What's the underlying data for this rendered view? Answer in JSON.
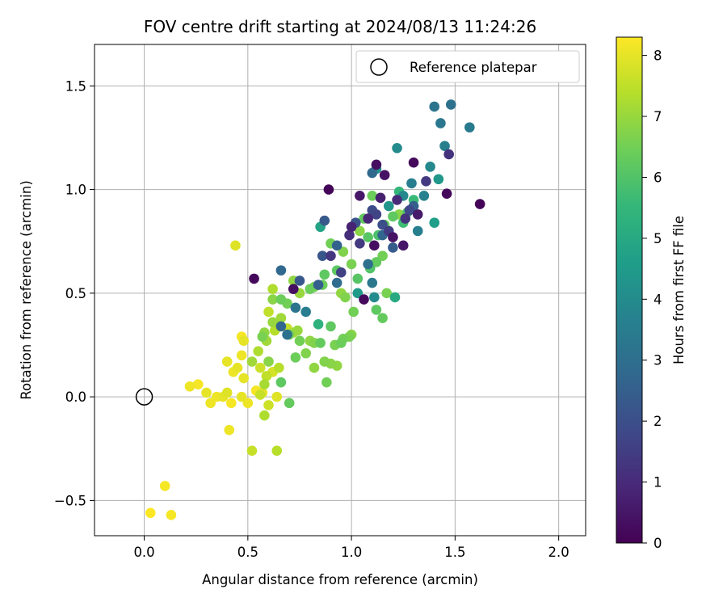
{
  "chart_data": {
    "type": "scatter",
    "title": "FOV centre drift starting at 2024/08/13 11:24:26",
    "xlabel": "Angular distance from reference (arcmin)",
    "ylabel": "Rotation from reference (arcmin)",
    "xlim": [
      -0.24,
      2.13
    ],
    "ylim": [
      -0.67,
      1.7
    ],
    "x_ticks": [
      0.0,
      0.5,
      1.0,
      1.5,
      2.0
    ],
    "x_tick_labels": [
      "0.0",
      "0.5",
      "1.0",
      "1.5",
      "2.0"
    ],
    "y_ticks": [
      -0.5,
      0.0,
      0.5,
      1.0,
      1.5
    ],
    "y_tick_labels": [
      "−0.5",
      "0.0",
      "0.5",
      "1.0",
      "1.5"
    ],
    "grid": true,
    "legend": {
      "placement": "top-right",
      "entries": [
        "Reference platepar"
      ]
    },
    "reference_point": {
      "name": "Reference platepar",
      "x": 0.0,
      "y": 0.0,
      "marker": "open-circle"
    },
    "colorbar": {
      "label": "Hours from first FF file",
      "range": [
        0,
        8.3
      ],
      "ticks": [
        0,
        1,
        2,
        3,
        4,
        5,
        6,
        7,
        8
      ],
      "tick_labels": [
        "0",
        "1",
        "2",
        "3",
        "4",
        "5",
        "6",
        "7",
        "8"
      ],
      "colormap": "viridis"
    },
    "colormap_stops": [
      "#440154",
      "#482878",
      "#3e4a89",
      "#31688e",
      "#26828e",
      "#1f9e89",
      "#35b779",
      "#6ece58",
      "#b5de2b",
      "#fde725"
    ],
    "points": [
      [
        1.62,
        0.93,
        0.1
      ],
      [
        1.46,
        0.98,
        0.2
      ],
      [
        1.12,
        1.12,
        0.3
      ],
      [
        1.3,
        1.13,
        0.2
      ],
      [
        0.89,
        1.0,
        0.1
      ],
      [
        1.16,
        1.07,
        0.4
      ],
      [
        1.04,
        0.97,
        0.5
      ],
      [
        0.53,
        0.57,
        0.2
      ],
      [
        1.11,
        0.73,
        0.3
      ],
      [
        1.2,
        0.77,
        0.4
      ],
      [
        1.25,
        0.73,
        0.5
      ],
      [
        1.32,
        0.88,
        0.6
      ],
      [
        1.06,
        0.47,
        0.2
      ],
      [
        0.72,
        0.52,
        0.3
      ],
      [
        1.14,
        0.96,
        0.7
      ],
      [
        1.0,
        0.82,
        0.8
      ],
      [
        1.08,
        0.86,
        0.9
      ],
      [
        1.22,
        0.95,
        1.0
      ],
      [
        0.99,
        0.78,
        1.1
      ],
      [
        1.26,
        0.86,
        1.2
      ],
      [
        0.9,
        0.68,
        1.3
      ],
      [
        1.04,
        0.74,
        1.4
      ],
      [
        1.18,
        0.8,
        1.5
      ],
      [
        0.95,
        0.6,
        1.6
      ],
      [
        1.12,
        0.88,
        1.7
      ],
      [
        1.28,
        0.9,
        1.8
      ],
      [
        1.47,
        1.17,
        1.2
      ],
      [
        1.36,
        1.04,
        1.4
      ],
      [
        1.1,
        0.9,
        1.9
      ],
      [
        1.15,
        0.83,
        2.0
      ],
      [
        1.02,
        0.84,
        2.1
      ],
      [
        0.86,
        0.68,
        2.2
      ],
      [
        0.87,
        0.85,
        2.3
      ],
      [
        1.2,
        0.72,
        2.4
      ],
      [
        1.3,
        0.92,
        2.5
      ],
      [
        0.93,
        0.73,
        2.6
      ],
      [
        1.15,
        0.78,
        2.7
      ],
      [
        1.1,
        1.08,
        2.8
      ],
      [
        1.4,
        1.4,
        3.2
      ],
      [
        1.48,
        1.41,
        3.1
      ],
      [
        1.43,
        1.32,
        3.3
      ],
      [
        1.57,
        1.3,
        3.4
      ],
      [
        1.45,
        1.21,
        3.6
      ],
      [
        1.38,
        1.11,
        3.9
      ],
      [
        1.22,
        1.2,
        4.0
      ],
      [
        1.12,
        1.1,
        4.2
      ],
      [
        1.42,
        1.05,
        4.4
      ],
      [
        1.29,
        1.03,
        3.5
      ],
      [
        1.35,
        0.97,
        3.7
      ],
      [
        1.25,
        0.97,
        3.9
      ],
      [
        1.32,
        0.8,
        3.6
      ],
      [
        1.4,
        0.84,
        4.6
      ],
      [
        1.18,
        0.92,
        4.3
      ],
      [
        1.08,
        0.64,
        3.0
      ],
      [
        0.93,
        0.55,
        2.9
      ],
      [
        0.84,
        0.54,
        2.5
      ],
      [
        0.66,
        0.61,
        2.8
      ],
      [
        0.73,
        0.43,
        3.2
      ],
      [
        0.78,
        0.41,
        3.5
      ],
      [
        0.75,
        0.56,
        2.3
      ],
      [
        0.66,
        0.34,
        2.7
      ],
      [
        0.69,
        0.3,
        3.1
      ],
      [
        1.1,
        0.55,
        3.3
      ],
      [
        1.11,
        0.48,
        4.0
      ],
      [
        0.85,
        0.82,
        4.8
      ],
      [
        1.03,
        0.5,
        4.5
      ],
      [
        1.21,
        0.48,
        5.0
      ],
      [
        0.84,
        0.35,
        5.3
      ],
      [
        1.23,
        0.99,
        5.5
      ],
      [
        1.25,
        0.84,
        5.7
      ],
      [
        1.13,
        0.78,
        5.9
      ],
      [
        1.3,
        0.95,
        5.6
      ],
      [
        1.27,
        0.89,
        6.0
      ],
      [
        1.2,
        0.87,
        6.2
      ],
      [
        1.16,
        0.83,
        6.4
      ],
      [
        1.08,
        0.77,
        6.1
      ],
      [
        1.12,
        0.65,
        6.3
      ],
      [
        1.15,
        0.68,
        6.5
      ],
      [
        1.0,
        0.64,
        6.6
      ],
      [
        1.09,
        0.62,
        6.0
      ],
      [
        0.93,
        0.61,
        6.2
      ],
      [
        0.86,
        0.54,
        6.4
      ],
      [
        0.96,
        0.7,
        6.7
      ],
      [
        0.9,
        0.74,
        6.5
      ],
      [
        1.04,
        0.8,
        6.8
      ],
      [
        0.82,
        0.53,
        6.6
      ],
      [
        0.87,
        0.59,
        6.2
      ],
      [
        0.8,
        0.52,
        6.4
      ],
      [
        0.95,
        0.5,
        6.9
      ],
      [
        1.06,
        0.86,
        6.3
      ],
      [
        1.1,
        0.97,
        6.4
      ],
      [
        1.23,
        0.88,
        6.8
      ],
      [
        1.03,
        0.57,
        6.1
      ],
      [
        1.12,
        0.42,
        6.2
      ],
      [
        1.15,
        0.38,
        6.3
      ],
      [
        1.17,
        0.5,
        6.6
      ],
      [
        1.01,
        0.41,
        6.5
      ],
      [
        0.97,
        0.48,
        6.7
      ],
      [
        0.9,
        0.34,
        6.2
      ],
      [
        0.95,
        0.26,
        6.4
      ],
      [
        0.88,
        0.07,
        6.5
      ],
      [
        0.92,
        0.25,
        6.6
      ],
      [
        0.82,
        0.26,
        6.7
      ],
      [
        0.82,
        0.14,
        6.9
      ],
      [
        0.85,
        0.26,
        6.3
      ],
      [
        0.87,
        0.17,
        6.7
      ],
      [
        0.9,
        0.16,
        6.8
      ],
      [
        0.93,
        0.15,
        6.9
      ],
      [
        0.96,
        0.28,
        6.5
      ],
      [
        0.99,
        0.29,
        6.6
      ],
      [
        1.0,
        0.3,
        6.8
      ],
      [
        0.78,
        0.21,
        6.7
      ],
      [
        0.8,
        0.27,
        6.9
      ],
      [
        0.73,
        0.19,
        6.4
      ],
      [
        0.75,
        0.27,
        6.5
      ],
      [
        0.7,
        0.3,
        6.6
      ],
      [
        0.66,
        0.07,
        6.2
      ],
      [
        0.7,
        -0.03,
        6.3
      ],
      [
        0.6,
        0.17,
        6.8
      ],
      [
        0.57,
        0.29,
        6.6
      ],
      [
        0.58,
        0.31,
        6.9
      ],
      [
        0.62,
        0.36,
        7.0
      ],
      [
        0.66,
        0.38,
        7.1
      ],
      [
        0.66,
        0.47,
        6.4
      ],
      [
        0.69,
        0.45,
        6.5
      ],
      [
        0.72,
        0.56,
        6.9
      ],
      [
        0.75,
        0.5,
        7.0
      ],
      [
        0.62,
        0.47,
        6.8
      ],
      [
        0.62,
        0.52,
        7.3
      ],
      [
        0.6,
        0.41,
        7.5
      ],
      [
        0.63,
        0.32,
        7.4
      ],
      [
        0.69,
        0.33,
        7.6
      ],
      [
        0.72,
        0.31,
        7.2
      ],
      [
        0.74,
        0.32,
        7.0
      ],
      [
        0.59,
        0.27,
        7.1
      ],
      [
        0.55,
        0.22,
        7.3
      ],
      [
        0.56,
        0.14,
        7.7
      ],
      [
        0.52,
        0.17,
        7.1
      ],
      [
        0.58,
        0.06,
        7.2
      ],
      [
        0.59,
        0.1,
        7.5
      ],
      [
        0.62,
        0.12,
        7.8
      ],
      [
        0.65,
        0.14,
        7.4
      ],
      [
        0.56,
        0.01,
        7.6
      ],
      [
        0.58,
        -0.09,
        7.3
      ],
      [
        0.6,
        -0.04,
        7.7
      ],
      [
        0.64,
        0.0,
        7.9
      ],
      [
        0.52,
        -0.26,
        7.6
      ],
      [
        0.64,
        -0.26,
        7.4
      ],
      [
        0.48,
        0.09,
        8.0
      ],
      [
        0.43,
        0.12,
        8.1
      ],
      [
        0.45,
        0.14,
        8.0
      ],
      [
        0.47,
        0.2,
        8.1
      ],
      [
        0.47,
        0.29,
        8.2
      ],
      [
        0.48,
        0.27,
        8.0
      ],
      [
        0.44,
        0.73,
        7.9
      ],
      [
        0.4,
        0.17,
        8.0
      ],
      [
        0.35,
        0.0,
        8.1
      ],
      [
        0.38,
        0.0,
        8.0
      ],
      [
        0.4,
        0.02,
        7.9
      ],
      [
        0.42,
        -0.03,
        8.2
      ],
      [
        0.3,
        0.02,
        8.0
      ],
      [
        0.32,
        -0.03,
        8.1
      ],
      [
        0.26,
        0.06,
        8.2
      ],
      [
        0.22,
        0.05,
        8.1
      ],
      [
        0.47,
        0.0,
        8.0
      ],
      [
        0.5,
        -0.03,
        8.1
      ],
      [
        0.54,
        0.03,
        8.2
      ],
      [
        0.57,
        0.02,
        8.0
      ],
      [
        0.41,
        -0.16,
        8.1
      ],
      [
        0.1,
        -0.43,
        8.2
      ],
      [
        0.03,
        -0.56,
        8.3
      ],
      [
        0.13,
        -0.57,
        8.2
      ]
    ]
  }
}
